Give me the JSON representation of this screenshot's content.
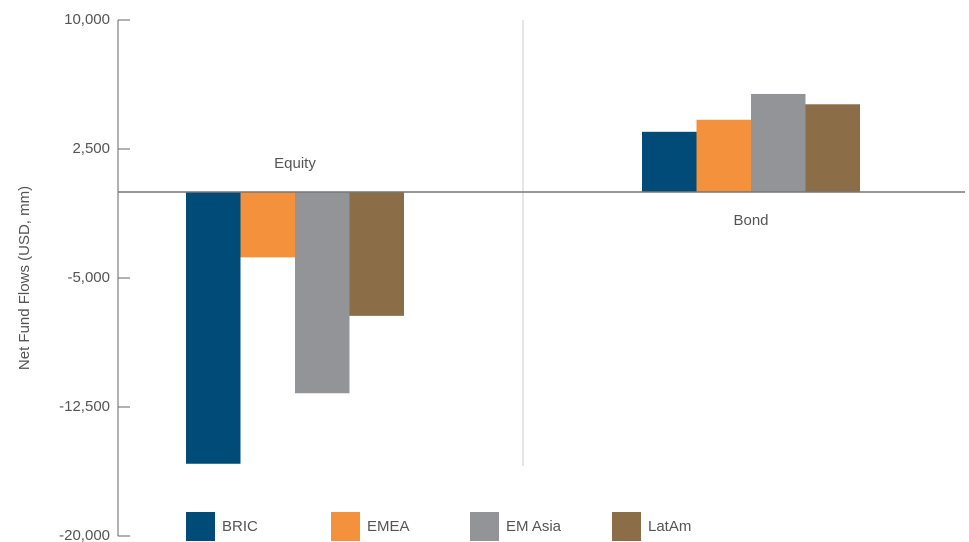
{
  "chart_data": {
    "type": "bar",
    "y_label": "Net Fund Flows (USD, mm)",
    "categories": [
      "Equity",
      "Bond"
    ],
    "series": [
      {
        "name": "BRIC",
        "color": "#004b78",
        "values": [
          -15800,
          3500
        ]
      },
      {
        "name": "EMEA",
        "color": "#f4913c",
        "values": [
          -3800,
          4200
        ]
      },
      {
        "name": "EM Asia",
        "color": "#939498",
        "values": [
          -11700,
          5700
        ]
      },
      {
        "name": "LatAm",
        "color": "#8b6d48",
        "values": [
          -7200,
          5100
        ]
      }
    ],
    "ylim": [
      -20000,
      10000
    ],
    "yticks": [
      {
        "value": -20000,
        "label": "-20,000"
      },
      {
        "value": -12500,
        "label": "-12,500"
      },
      {
        "value": -5000,
        "label": "-5,000"
      },
      {
        "value": 2500,
        "label": "2,500"
      },
      {
        "value": 10000,
        "label": "10,000"
      }
    ],
    "legend": "bottom"
  }
}
